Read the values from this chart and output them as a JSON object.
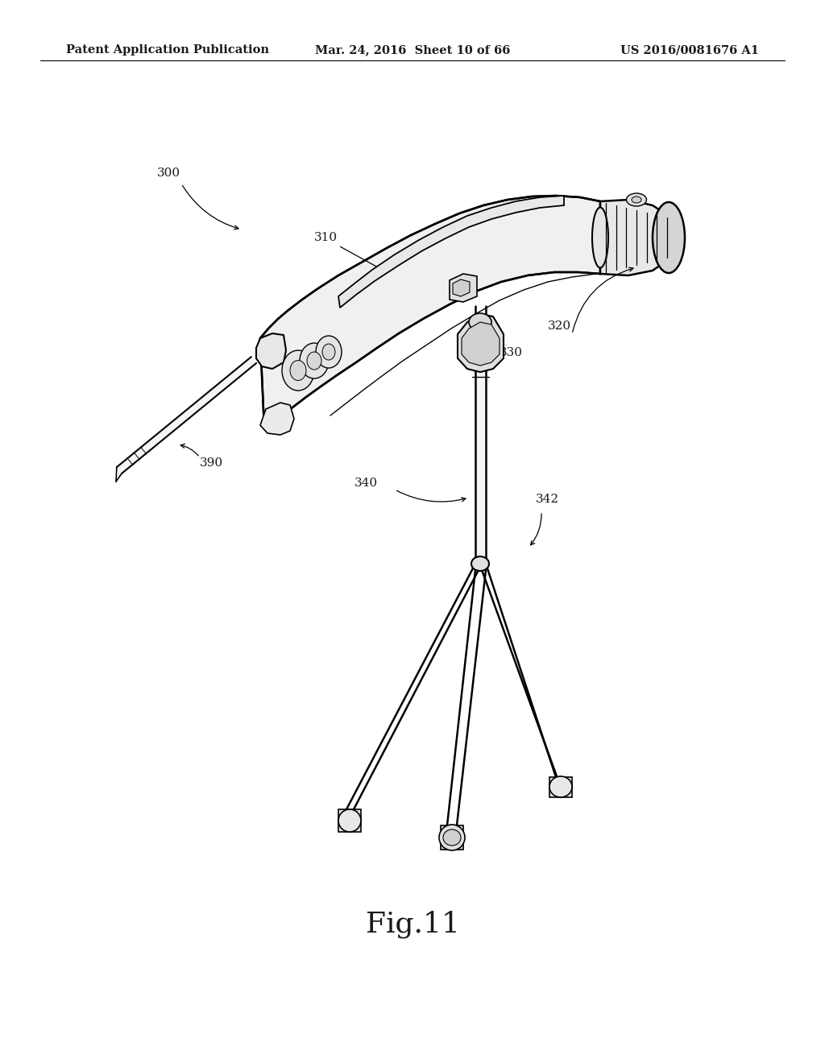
{
  "header_left": "Patent Application Publication",
  "header_mid": "Mar. 24, 2016  Sheet 10 of 66",
  "header_right": "US 2016/0081676 A1",
  "fig_label": "Fig.11",
  "bg_color": "#ffffff",
  "line_color": "#000000",
  "label_color": "#1a1a1a",
  "header_fontsize": 10.5,
  "fig_label_fontsize": 26,
  "annotation_fontsize": 11
}
